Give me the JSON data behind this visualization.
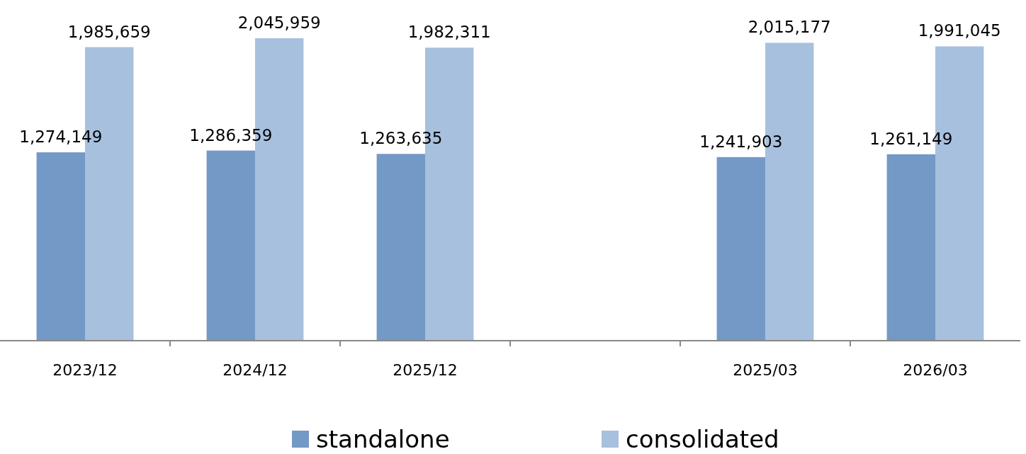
{
  "chart_data": {
    "type": "bar",
    "categories": [
      "2023/12",
      "2024/12",
      "2025/12",
      null,
      "2025/03",
      "2026/03"
    ],
    "series": [
      {
        "name": "standalone",
        "color": "#7399c6",
        "values": [
          1274149,
          1286359,
          1263635,
          null,
          1241903,
          1261149
        ],
        "value_labels": [
          "1,274,149",
          "1,286,359",
          "1,263,635",
          null,
          "1,241,903",
          "1,261,149"
        ]
      },
      {
        "name": "consolidated",
        "color": "#a7c0de",
        "values": [
          1985659,
          2045959,
          1982311,
          null,
          2015177,
          1991045
        ],
        "value_labels": [
          "1,985,659",
          "2,045,959",
          "1,982,311",
          null,
          "2,015,177",
          "1,991,045"
        ]
      }
    ],
    "legend": "bottom",
    "tick_labels": "x"
  }
}
